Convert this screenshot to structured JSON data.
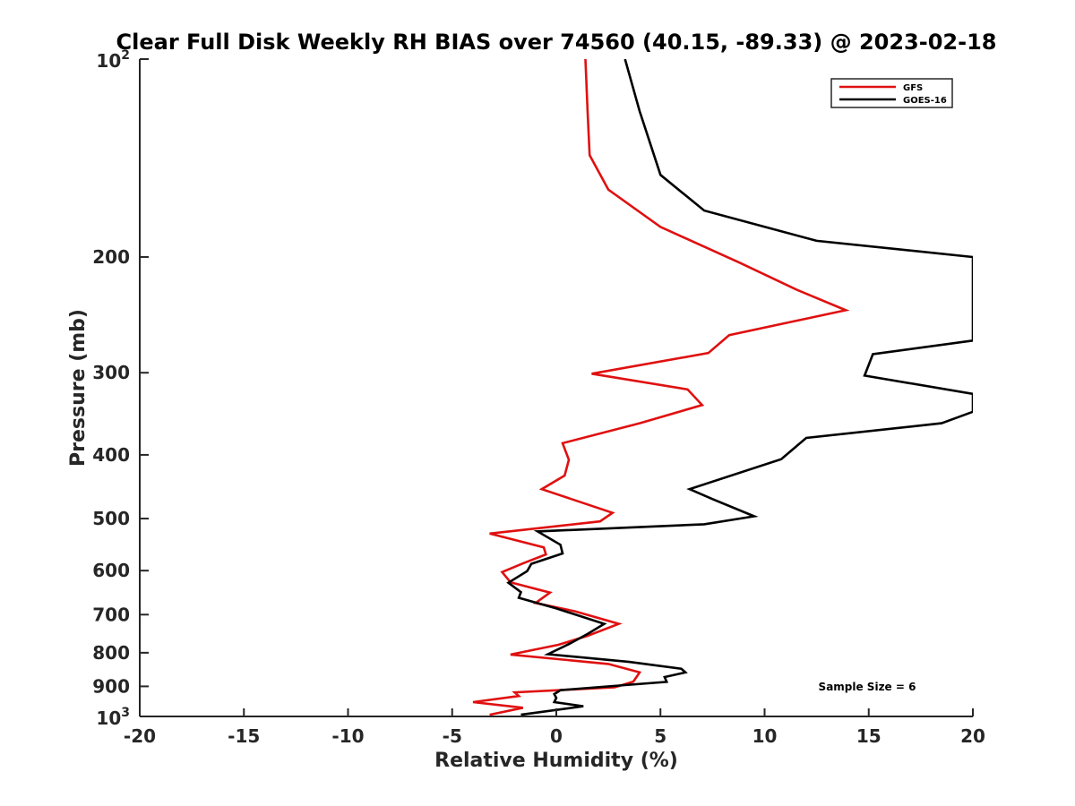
{
  "chart_data": {
    "type": "line",
    "title": "Clear Full Disk Weekly RH BIAS over 74560 (40.15, -89.33) @ 2023-02-18",
    "xlabel": "Relative Humidity (%)",
    "ylabel": "Pressure (mb)",
    "xlim": [
      -20,
      20
    ],
    "ylim": [
      100,
      1000
    ],
    "y_scale": "log",
    "y_reversed": true,
    "x_ticks": [
      -20,
      -15,
      -10,
      -5,
      0,
      5,
      10,
      15,
      20
    ],
    "y_ticks": [
      200,
      300,
      400,
      500,
      600,
      700,
      800,
      900
    ],
    "y_tick_labels": [
      "200",
      "300",
      "400",
      "500",
      "600",
      "700",
      "800",
      "900"
    ],
    "y_end_labels": {
      "top": {
        "base": "10",
        "exp": "2"
      },
      "bottom": {
        "base": "10",
        "exp": "3"
      }
    },
    "grid": false,
    "legend_position": "top-right",
    "annotation": "Sample Size = 6",
    "series": [
      {
        "name": "GFS",
        "color": "#e01010",
        "points": [
          [
            1.4,
            100
          ],
          [
            1.5,
            120
          ],
          [
            1.6,
            140
          ],
          [
            2.5,
            158
          ],
          [
            5.0,
            180
          ],
          [
            8.8,
            204
          ],
          [
            11.5,
            224
          ],
          [
            13.9,
            241
          ],
          [
            8.3,
            263
          ],
          [
            7.3,
            280
          ],
          [
            1.7,
            301
          ],
          [
            6.3,
            318
          ],
          [
            7.0,
            336
          ],
          [
            4.0,
            358
          ],
          [
            0.3,
            384
          ],
          [
            0.6,
            407
          ],
          [
            0.4,
            430
          ],
          [
            -0.7,
            451
          ],
          [
            2.7,
            490
          ],
          [
            2.1,
            505
          ],
          [
            -3.2,
            527
          ],
          [
            -0.6,
            553
          ],
          [
            -0.5,
            567
          ],
          [
            -1.6,
            585
          ],
          [
            -2.6,
            603
          ],
          [
            -2.2,
            625
          ],
          [
            -0.3,
            648
          ],
          [
            -1.0,
            672
          ],
          [
            0.9,
            692
          ],
          [
            3.0,
            723
          ],
          [
            1.5,
            754
          ],
          [
            0.1,
            778
          ],
          [
            -2.2,
            805
          ],
          [
            2.5,
            832
          ],
          [
            4.0,
            857
          ],
          [
            3.7,
            885
          ],
          [
            2.8,
            903
          ],
          [
            -2.0,
            919
          ],
          [
            -1.8,
            931
          ],
          [
            -4.0,
            951
          ],
          [
            -1.6,
            970
          ],
          [
            -3.2,
            994
          ]
        ]
      },
      {
        "name": "GOES-16",
        "color": "#000000",
        "points": [
          [
            3.3,
            100
          ],
          [
            4.0,
            120
          ],
          [
            5.0,
            150
          ],
          [
            7.1,
            170
          ],
          [
            12.5,
            189
          ],
          [
            20.0,
            200
          ],
          [
            20.0,
            268
          ],
          [
            15.2,
            281
          ],
          [
            14.8,
            303
          ],
          [
            20.0,
            323
          ],
          [
            20.0,
            344
          ],
          [
            18.5,
            358
          ],
          [
            12.0,
            377
          ],
          [
            10.8,
            406
          ],
          [
            6.4,
            451
          ],
          [
            7.5,
            467
          ],
          [
            9.5,
            496
          ],
          [
            7.1,
            510
          ],
          [
            -0.9,
            523
          ],
          [
            0.2,
            548
          ],
          [
            0.3,
            565
          ],
          [
            -1.2,
            586
          ],
          [
            -1.4,
            601
          ],
          [
            -2.3,
            626
          ],
          [
            -1.7,
            647
          ],
          [
            -1.8,
            660
          ],
          [
            0.0,
            685
          ],
          [
            2.3,
            723
          ],
          [
            1.5,
            749
          ],
          [
            0.6,
            776
          ],
          [
            -0.4,
            804
          ],
          [
            3.5,
            826
          ],
          [
            6.0,
            846
          ],
          [
            6.2,
            857
          ],
          [
            5.2,
            871
          ],
          [
            5.3,
            886
          ],
          [
            0.2,
            912
          ],
          [
            -0.1,
            925
          ],
          [
            0.0,
            937
          ],
          [
            -0.1,
            951
          ],
          [
            1.3,
            965
          ],
          [
            -1.7,
            994
          ]
        ]
      }
    ]
  }
}
